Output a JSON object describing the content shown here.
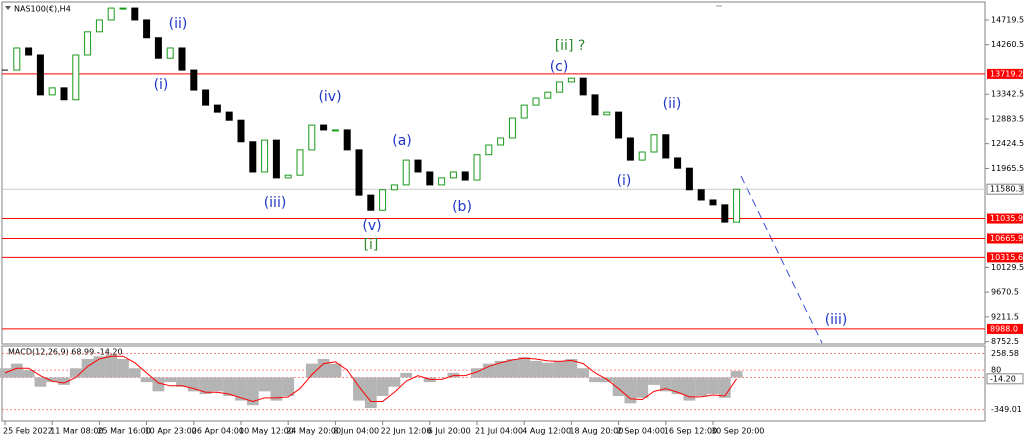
{
  "chart_data": [
    {
      "type": "candlestick",
      "title": "NAS100(€),H4",
      "categories": [
        "25 Feb 2022",
        null,
        null,
        null,
        "11 Mar 08:00",
        null,
        null,
        null,
        "25 Mar 16:00",
        null,
        null,
        null,
        "10 Apr 23:00",
        null,
        null,
        null,
        "26 Apr 04:00",
        null,
        null,
        null,
        "10 May 12:00",
        null,
        null,
        null,
        "24 May 20:00",
        null,
        null,
        null,
        "8 Jun 04:00",
        null,
        null,
        null,
        "22 Jun 12:00",
        null,
        null,
        null,
        "6 Jul 20:00",
        null,
        null,
        null,
        "21 Jul 04:00",
        null,
        null,
        null,
        "4 Aug 12:00",
        null,
        null,
        null,
        "18 Aug 20:00",
        null,
        null,
        null,
        "2 Sep 04:00",
        null,
        null,
        null,
        "16 Sep 12:00",
        null,
        null,
        null,
        "30 Sep 20:00",
        null,
        null
      ],
      "values": [
        13790,
        14200,
        14070,
        13330,
        13460,
        13240,
        14070,
        14500,
        14720,
        14940,
        14940,
        14720,
        14390,
        14010,
        14200,
        13790,
        13420,
        13140,
        13010,
        12860,
        12460,
        11900,
        12490,
        11790,
        11840,
        12310,
        12770,
        12680,
        12680,
        12310,
        11470,
        11190,
        11570,
        11660,
        12120,
        11900,
        11660,
        11790,
        11900,
        11750,
        12220,
        12400,
        12530,
        12900,
        13140,
        13270,
        13380,
        13570,
        13640,
        13330,
        12960,
        13010,
        12530,
        12120,
        12270,
        12590,
        12160,
        11970,
        11570,
        11380,
        11290,
        10970,
        11580
      ],
      "up_color": "#1a9a1a",
      "down_color": "#000000",
      "ylim": [
        8690,
        15090
      ],
      "yticks": [
        14719.5,
        14260.5,
        13342.5,
        12883.5,
        12424.5,
        11965.5,
        10129.5,
        9670.5,
        9211.5,
        8752.5
      ],
      "levels": [
        13719.2,
        11035.9,
        10665.9,
        10315.6,
        {
          "value": 8988,
          "label": "8988.0"
        }
      ],
      "level_color": "#ff0000",
      "current_price": 11580.3,
      "annotations": [
        {
          "text": "(ii)",
          "color": "#1f35c8"
        },
        {
          "text": "(i)",
          "color": "#1f35c8"
        },
        {
          "text": "(iv)",
          "color": "#1f35c8"
        },
        {
          "text": "(iii)",
          "color": "#1f35c8"
        },
        {
          "text": "(a)",
          "color": "#1f35c8"
        },
        {
          "text": "(v)",
          "color": "#1f35c8"
        },
        {
          "text": "[i]",
          "color": "#2e8b2e"
        },
        {
          "text": "(b)",
          "color": "#1f35c8"
        },
        {
          "text": "[ii] ?",
          "color": "#2e8b2e"
        },
        {
          "text": "(c)",
          "color": "#1f35c8"
        },
        {
          "text": "(ii)",
          "color": "#1f35c8"
        },
        {
          "text": "(i)",
          "color": "#1f35c8"
        },
        {
          "text": "(iii)",
          "color": "#1f35c8"
        }
      ]
    },
    {
      "type": "macd",
      "title": "MACD(12,26,9) 68.99 -14.20",
      "ylim": [
        -460,
        330
      ],
      "yticks": [
        258.58,
        80,
        {
          "value": 0,
          "label": "0.00"
        },
        -349.01
      ],
      "marker": {
        "value": -14.2,
        "label": "-14.20"
      },
      "series": [
        {
          "color": "#b4b4b4",
          "values": [
            100,
            150,
            80,
            -100,
            -50,
            -80,
            100,
            200,
            230,
            250,
            200,
            100,
            -50,
            -150,
            -50,
            -100,
            -150,
            -180,
            -150,
            -200,
            -250,
            -300,
            -150,
            -250,
            -200,
            0,
            150,
            200,
            150,
            0,
            -250,
            -330,
            -200,
            -100,
            50,
            0,
            -50,
            0,
            50,
            0,
            100,
            150,
            180,
            200,
            220,
            180,
            160,
            180,
            200,
            100,
            -50,
            -50,
            -200,
            -280,
            -220,
            -80,
            -150,
            -180,
            -250,
            -200,
            -180,
            -220,
            68.99
          ]
        },
        {
          "color": "#ff0000",
          "values": [
            50,
            100,
            100,
            20,
            -40,
            -60,
            0,
            120,
            200,
            230,
            230,
            160,
            50,
            -60,
            -90,
            -90,
            -120,
            -160,
            -160,
            -180,
            -220,
            -260,
            -220,
            -220,
            -210,
            -120,
            30,
            150,
            170,
            80,
            -100,
            -260,
            -260,
            -160,
            -40,
            20,
            -20,
            -20,
            20,
            20,
            60,
            120,
            160,
            190,
            210,
            200,
            180,
            175,
            185,
            150,
            50,
            -20,
            -120,
            -230,
            -240,
            -150,
            -120,
            -160,
            -210,
            -210,
            -190,
            -200,
            -14.2
          ]
        }
      ]
    }
  ]
}
